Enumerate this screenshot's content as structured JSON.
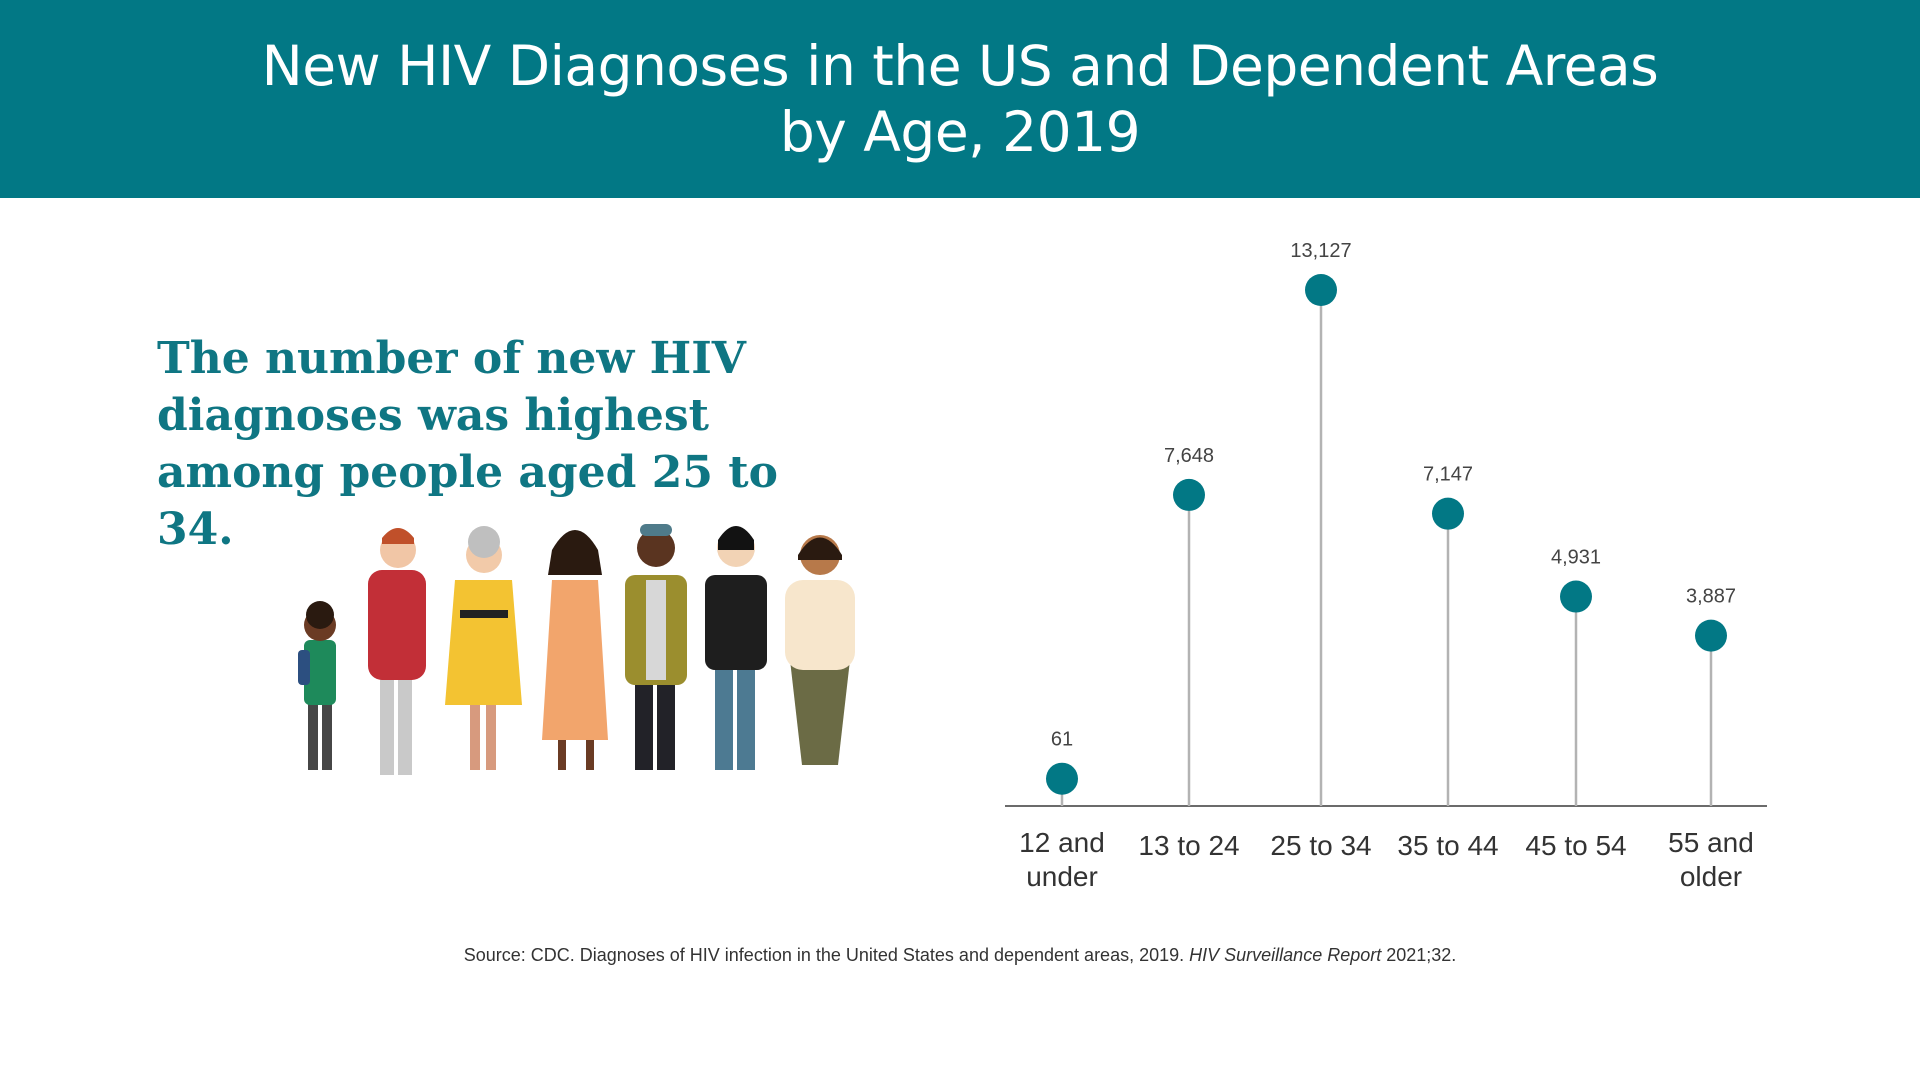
{
  "header": {
    "title_line1": "New HIV Diagnoses in the US and Dependent Areas",
    "title_line2": "by Age, 2019"
  },
  "headline": "The number of new HIV diagnoses was highest among people aged 25 to 34.",
  "source": {
    "prefix": "Source: CDC. Diagnoses of HIV infection in the United States and dependent areas, 2019. ",
    "italic": "HIV Surveillance Report",
    "suffix": " 2021;32."
  },
  "colors": {
    "header_bg": "#027885",
    "marker": "#027885",
    "headline": "#0f7683",
    "stem": "#b3b3b3",
    "axis": "#6b6b6b"
  },
  "chart_data": {
    "type": "lollipop",
    "categories": [
      [
        "12 and",
        "under"
      ],
      [
        "13 to 24"
      ],
      [
        "25 to 34"
      ],
      [
        "35 to 44"
      ],
      [
        "45 to 54"
      ],
      [
        "55 and",
        "older"
      ]
    ],
    "values": [
      61,
      7648,
      13127,
      7147,
      4931,
      3887
    ],
    "value_labels": [
      "61",
      "7,648",
      "13,127",
      "7,147",
      "4,931",
      "3,887"
    ],
    "ylim": [
      0,
      13127
    ],
    "grid": false,
    "legend": "none"
  },
  "illustration": {
    "icon": "group-of-diverse-people-illustration"
  }
}
